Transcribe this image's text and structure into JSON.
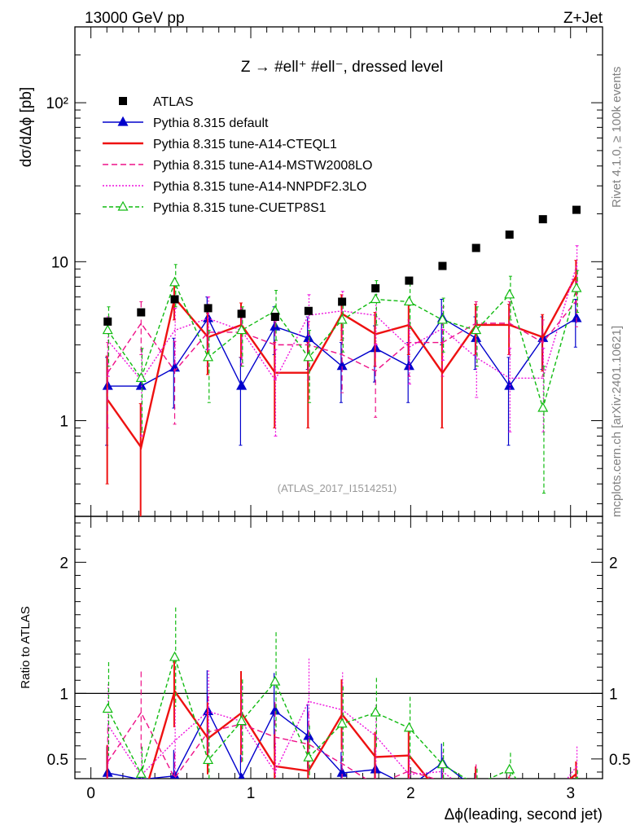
{
  "header": {
    "left": "13000 GeV pp",
    "right": "Z+Jet"
  },
  "side_labels": {
    "rivet": "Rivet 4.1.0, ≥ 100k events",
    "mcplots": "mcplots.cern.ch [arXiv:2401.10621]"
  },
  "chart_data": {
    "type": "line",
    "title": "Z → #ell⁺ #ell⁻, dressed level",
    "analysis_tag": "(ATLAS_2017_I1514251)",
    "xlabel": "Δϕ(leading, second jet)",
    "ylabel": "dσ/dΔϕ [pb]",
    "ratio_ylabel": "Ratio to ATLAS",
    "xlim": [
      -0.1,
      3.2
    ],
    "ylim": [
      0.25,
      300
    ],
    "ratio_ylim": [
      0.35,
      2.35
    ],
    "yscale": "log",
    "x_ticks": [
      "0",
      "1",
      "2",
      "3"
    ],
    "y_ticks": [
      "1",
      "10",
      "10²"
    ],
    "ratio_ticks": [
      "0.5",
      "1",
      "2"
    ],
    "x": [
      0.105,
      0.314,
      0.524,
      0.733,
      0.942,
      1.152,
      1.361,
      1.571,
      1.78,
      1.99,
      2.199,
      2.409,
      2.618,
      2.827,
      3.037
    ],
    "data": {
      "name": "ATLAS",
      "values": [
        4.2,
        4.8,
        5.8,
        5.1,
        4.7,
        4.5,
        4.9,
        5.6,
        6.8,
        7.6,
        9.4,
        12.2,
        14.8,
        18.5,
        21.2
      ]
    },
    "series": [
      {
        "name": "Pythia 8.315 default",
        "color": "#0000cc",
        "dash": "",
        "marker": "triangle",
        "values": [
          1.65,
          1.65,
          2.15,
          4.4,
          1.65,
          3.9,
          3.3,
          2.2,
          2.85,
          2.2,
          4.4,
          3.3,
          1.65,
          3.3,
          4.4
        ],
        "err_up": [
          0.85,
          0.0,
          1.15,
          1.6,
          0.85,
          1.3,
          1.2,
          0.9,
          1.1,
          0.9,
          1.4,
          1.2,
          0.85,
          1.2,
          1.4
        ],
        "err_dn": [
          0.95,
          0.0,
          0.95,
          1.6,
          0.95,
          1.3,
          1.2,
          0.9,
          1.1,
          0.9,
          1.4,
          1.2,
          0.95,
          1.2,
          1.5
        ]
      },
      {
        "name": "Pythia 8.315 tune-A14-CTEQL1",
        "color": "#ee1111",
        "dash": "",
        "marker": "none",
        "values": [
          1.35,
          0.68,
          5.9,
          3.35,
          4.0,
          2.0,
          2.0,
          4.7,
          3.5,
          4.0,
          2.0,
          4.0,
          4.0,
          3.35,
          8.2
        ],
        "err_up": [
          1.2,
          0.6,
          1.6,
          1.4,
          1.5,
          1.1,
          1.1,
          1.5,
          1.3,
          1.4,
          1.1,
          1.4,
          1.4,
          1.3,
          2.0
        ],
        "err_dn": [
          0.95,
          0.6,
          1.6,
          1.4,
          1.5,
          1.1,
          1.1,
          1.5,
          1.3,
          1.4,
          1.1,
          1.4,
          1.4,
          1.3,
          2.0
        ]
      },
      {
        "name": "Pythia 8.315 tune-A14-MSTW2008LO",
        "color": "#ee1188",
        "dash": "7,4",
        "marker": "none",
        "values": [
          2.0,
          4.1,
          2.05,
          3.6,
          3.6,
          3.0,
          3.0,
          2.6,
          2.05,
          3.1,
          3.1,
          4.1,
          4.1,
          3.1,
          5.7
        ],
        "err_up": [
          1.1,
          1.5,
          1.1,
          1.4,
          1.4,
          1.2,
          1.2,
          1.1,
          1.0,
          1.2,
          1.2,
          1.5,
          1.5,
          1.2,
          1.8
        ],
        "err_dn": [
          1.1,
          1.5,
          1.1,
          1.4,
          1.4,
          1.2,
          1.2,
          1.1,
          1.0,
          1.2,
          1.2,
          1.5,
          1.5,
          1.2,
          1.8
        ]
      },
      {
        "name": "Pythia 8.315 tune-A14-NNPDF2.3LO",
        "color": "#ee11dd",
        "dash": "2,2",
        "marker": "none",
        "values": [
          3.2,
          1.8,
          3.7,
          4.4,
          3.7,
          1.8,
          4.6,
          4.9,
          4.6,
          2.9,
          3.8,
          2.5,
          1.85,
          1.85,
          9.4
        ],
        "err_up": [
          1.3,
          1.0,
          1.4,
          1.6,
          1.4,
          1.0,
          1.6,
          1.6,
          1.6,
          1.2,
          1.4,
          1.1,
          1.0,
          1.0,
          3.2
        ],
        "err_dn": [
          1.3,
          1.0,
          1.4,
          1.6,
          1.4,
          1.0,
          1.6,
          1.6,
          1.6,
          1.2,
          1.4,
          1.1,
          1.0,
          1.0,
          2.5
        ]
      },
      {
        "name": "Pythia 8.315 tune-CUETP8S1",
        "color": "#11bb11",
        "dash": "5,3",
        "marker": "open-triangle",
        "values": [
          3.7,
          1.85,
          7.4,
          2.5,
          3.7,
          4.9,
          2.5,
          4.3,
          5.8,
          5.6,
          4.3,
          3.7,
          6.2,
          1.2,
          6.8
        ],
        "err_up": [
          1.5,
          1.0,
          2.2,
          1.2,
          1.5,
          1.7,
          1.2,
          1.6,
          1.8,
          1.8,
          1.6,
          1.5,
          1.9,
          1.0,
          2.0
        ],
        "err_dn": [
          1.5,
          1.0,
          2.2,
          1.2,
          1.5,
          1.7,
          1.2,
          1.6,
          1.8,
          1.8,
          1.6,
          1.5,
          1.9,
          0.85,
          2.0
        ]
      }
    ]
  }
}
